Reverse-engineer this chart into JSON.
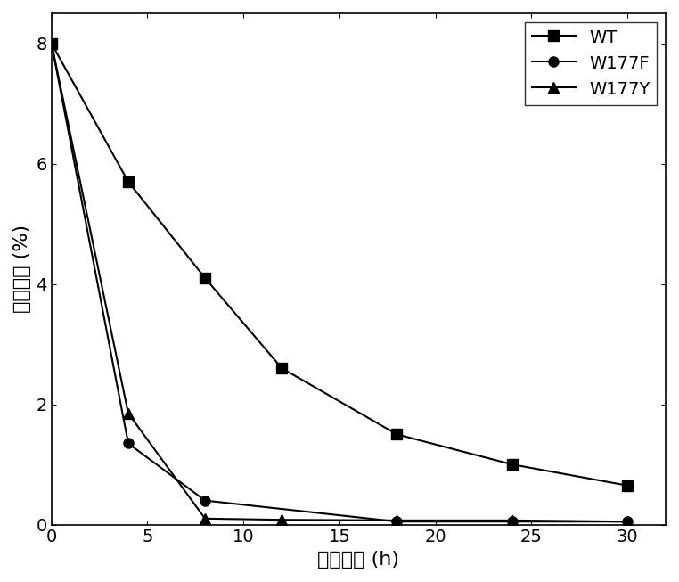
{
  "series": [
    {
      "label": "WT",
      "x": [
        0,
        4,
        8,
        12,
        18,
        24,
        30
      ],
      "y": [
        8.0,
        5.7,
        4.1,
        2.6,
        1.5,
        1.0,
        0.65
      ],
      "marker": "s",
      "color": "#000000",
      "markersize": 8,
      "linewidth": 1.5
    },
    {
      "label": "W177F",
      "x": [
        0,
        4,
        8,
        18,
        24,
        30
      ],
      "y": [
        8.0,
        1.35,
        0.4,
        0.05,
        0.05,
        0.05
      ],
      "marker": "o",
      "color": "#000000",
      "markersize": 8,
      "linewidth": 1.5
    },
    {
      "label": "W177Y",
      "x": [
        0,
        4,
        8,
        12,
        18,
        24,
        30
      ],
      "y": [
        8.0,
        1.85,
        0.1,
        0.08,
        0.07,
        0.07,
        0.05
      ],
      "marker": "^",
      "color": "#000000",
      "markersize": 8,
      "linewidth": 1.5
    }
  ],
  "xlabel": "反应时间 (h)",
  "ylabel": "三糖含量 (%)",
  "xlim": [
    0,
    32
  ],
  "ylim": [
    0,
    8.5
  ],
  "xticks": [
    0,
    5,
    10,
    15,
    20,
    25,
    30
  ],
  "yticks": [
    0,
    2,
    4,
    6,
    8
  ],
  "background_color": "#ffffff",
  "legend_loc": "upper right",
  "xlabel_fontsize": 16,
  "ylabel_fontsize": 16,
  "tick_fontsize": 14,
  "legend_fontsize": 14
}
